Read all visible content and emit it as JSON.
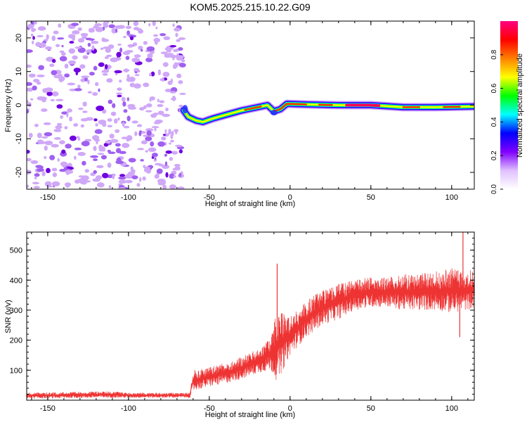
{
  "title": "KOM5.2025.215.10.22.G09",
  "chart_data": [
    {
      "type": "heatmap",
      "xlabel": "Height of straight line (km)",
      "ylabel": "Frequency (Hz)",
      "xlim": [
        -163,
        114
      ],
      "ylim": [
        -25,
        25
      ],
      "xticks": [
        -150,
        -100,
        -50,
        0,
        50,
        100
      ],
      "yticks": [
        -20,
        -10,
        0,
        10,
        20
      ],
      "xtick_labels": [
        "-150",
        "-100",
        "-50",
        "0",
        "50",
        "100"
      ],
      "ytick_labels": [
        "-20",
        "-10",
        "0",
        "10",
        "20"
      ],
      "noise_region_x": [
        -163,
        -66
      ],
      "ridge": [
        {
          "x": -66,
          "y": -1.5
        },
        {
          "x": -63,
          "y": -3.5
        },
        {
          "x": -58,
          "y": -4.6
        },
        {
          "x": -54,
          "y": -5.0
        },
        {
          "x": -48,
          "y": -4.0
        },
        {
          "x": -40,
          "y": -2.9
        },
        {
          "x": -30,
          "y": -1.6
        },
        {
          "x": -20,
          "y": -0.6
        },
        {
          "x": -14,
          "y": 0.0
        },
        {
          "x": -10,
          "y": -1.8
        },
        {
          "x": -6,
          "y": -1.2
        },
        {
          "x": -2,
          "y": 0.4
        },
        {
          "x": 10,
          "y": 0.2
        },
        {
          "x": 30,
          "y": 0.0
        },
        {
          "x": 50,
          "y": 0.0
        },
        {
          "x": 70,
          "y": -0.6
        },
        {
          "x": 90,
          "y": -0.6
        },
        {
          "x": 114,
          "y": -0.4
        }
      ],
      "colorbar": {
        "label": "Normalized spectral amplitude",
        "range": [
          0,
          1
        ],
        "ticks": [
          0.0,
          0.2,
          0.4,
          0.6,
          0.8
        ],
        "tick_labels": [
          "0.0",
          "0.2",
          "0.4",
          "0.6",
          "0.8"
        ],
        "colors": [
          "#ffffff",
          "#e0c0ff",
          "#8000ff",
          "#0000ff",
          "#00ffff",
          "#00ff00",
          "#ffff00",
          "#ff8000",
          "#ff0000",
          "#ff0080"
        ]
      },
      "grid": false
    },
    {
      "type": "line",
      "xlabel": "Height of straight line (km)",
      "ylabel": "SNR (v/v)",
      "xlim": [
        -163,
        114
      ],
      "ylim": [
        0,
        560
      ],
      "xticks": [
        -150,
        -100,
        -50,
        0,
        50,
        100
      ],
      "yticks": [
        100,
        200,
        300,
        400,
        500
      ],
      "xtick_labels": [
        "-150",
        "-100",
        "-50",
        "0",
        "50",
        "100"
      ],
      "ytick_labels": [
        "100",
        "200",
        "300",
        "400",
        "500"
      ],
      "color": "#ee3333",
      "envelope": [
        {
          "x": -163,
          "lo": 5,
          "hi": 25
        },
        {
          "x": -110,
          "lo": 8,
          "hi": 30
        },
        {
          "x": -100,
          "lo": 8,
          "hi": 25
        },
        {
          "x": -62,
          "lo": 8,
          "hi": 25
        },
        {
          "x": -60,
          "lo": 30,
          "hi": 100
        },
        {
          "x": -50,
          "lo": 45,
          "hi": 110
        },
        {
          "x": -40,
          "lo": 55,
          "hi": 125
        },
        {
          "x": -30,
          "lo": 70,
          "hi": 145
        },
        {
          "x": -20,
          "lo": 90,
          "hi": 170
        },
        {
          "x": -12,
          "lo": 100,
          "hi": 210
        },
        {
          "x": -8,
          "lo": 60,
          "hi": 300
        },
        {
          "x": 0,
          "lo": 150,
          "hi": 280
        },
        {
          "x": 10,
          "lo": 210,
          "hi": 330
        },
        {
          "x": 20,
          "lo": 250,
          "hi": 370
        },
        {
          "x": 30,
          "lo": 270,
          "hi": 390
        },
        {
          "x": 40,
          "lo": 300,
          "hi": 400
        },
        {
          "x": 50,
          "lo": 310,
          "hi": 410
        },
        {
          "x": 60,
          "lo": 310,
          "hi": 410
        },
        {
          "x": 70,
          "lo": 300,
          "hi": 420
        },
        {
          "x": 80,
          "lo": 300,
          "hi": 420
        },
        {
          "x": 90,
          "lo": 300,
          "hi": 430
        },
        {
          "x": 100,
          "lo": 290,
          "hi": 440
        },
        {
          "x": 110,
          "lo": 300,
          "hi": 430
        },
        {
          "x": 114,
          "lo": 310,
          "hi": 440
        }
      ],
      "spikes": [
        {
          "x": -8,
          "y": 455
        },
        {
          "x": 107,
          "y": 560
        },
        {
          "x": 105,
          "y": 210
        }
      ],
      "grid": false
    }
  ]
}
